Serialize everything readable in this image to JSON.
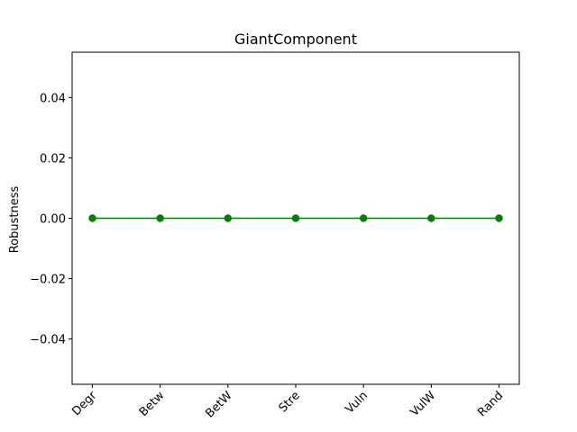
{
  "chart_data": {
    "type": "line",
    "title": "GiantComponent",
    "xlabel": "",
    "ylabel": "Robustness",
    "categories": [
      "Degr",
      "Betw",
      "BetW",
      "Stre",
      "Vuln",
      "VulW",
      "Rand"
    ],
    "series": [
      {
        "values": [
          0.0,
          0.0,
          0.0,
          0.0,
          0.0,
          0.0,
          0.0
        ],
        "color": "#008000",
        "marker": "circle"
      }
    ],
    "ylim": [
      -0.055,
      0.055
    ],
    "yticks": [
      -0.04,
      -0.02,
      0.0,
      0.02,
      0.04
    ],
    "ytick_labels": [
      "−0.04",
      "−0.02",
      "0.00",
      "0.02",
      "0.04"
    ],
    "grid": false,
    "x_tick_rotation": 45
  }
}
